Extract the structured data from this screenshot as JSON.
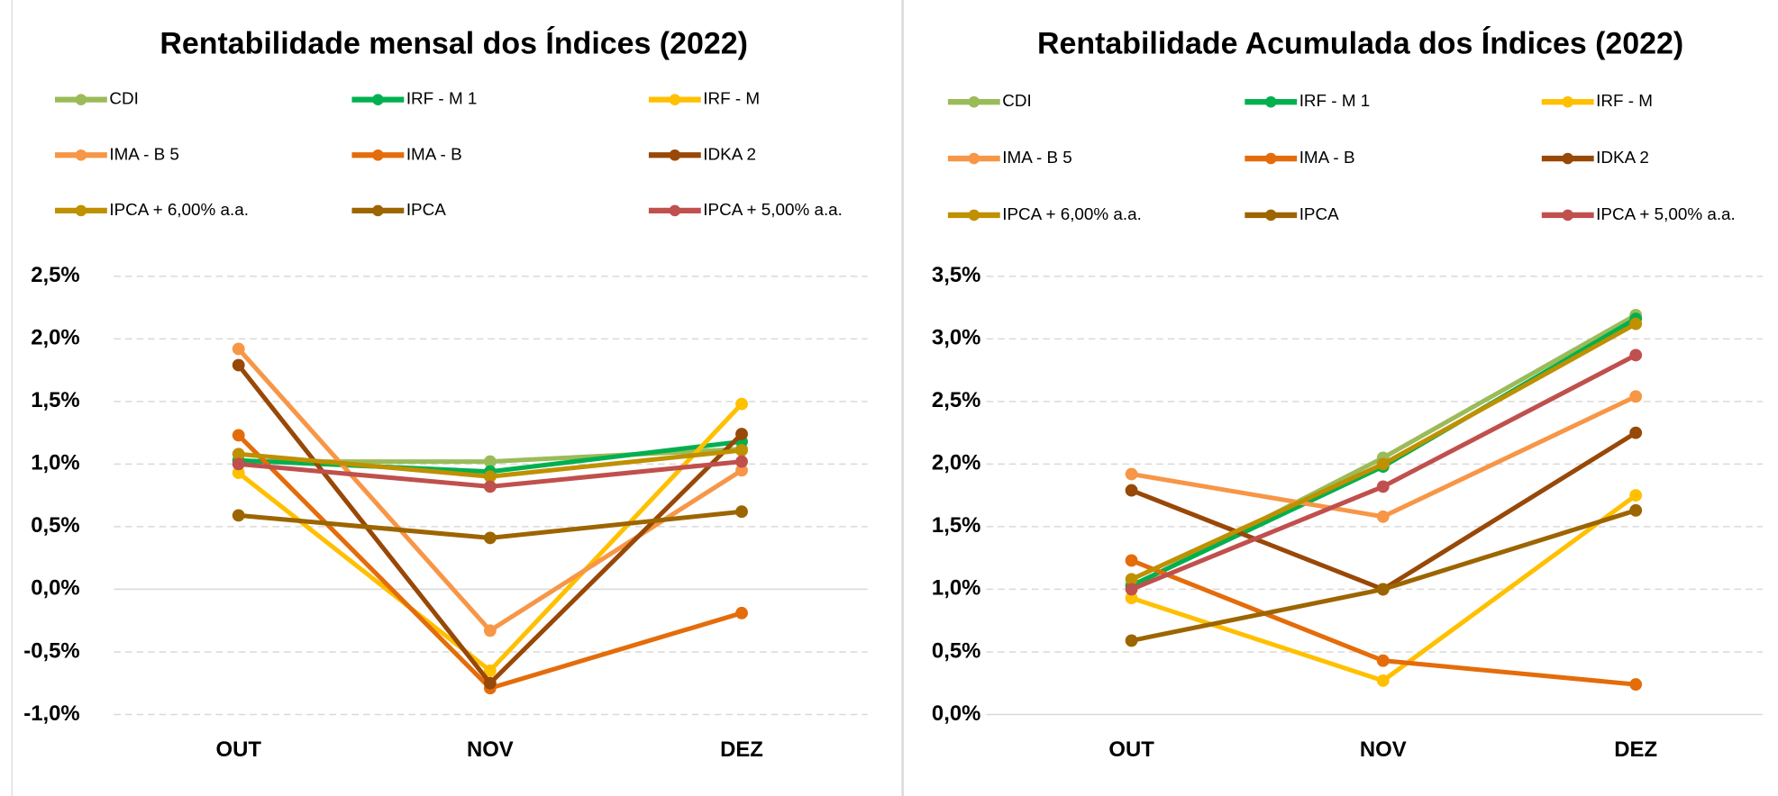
{
  "chart_data": [
    {
      "type": "line",
      "title": "Rentabilidade mensal dos Índices (2022)",
      "categories": [
        "OUT",
        "NOV",
        "DEZ"
      ],
      "ylim": [
        -1,
        2.5
      ],
      "yticks": [
        {
          "value": -1,
          "label": "-1,0%"
        },
        {
          "value": -0.5,
          "label": "-0,5%"
        },
        {
          "value": 0,
          "label": "0,0%"
        },
        {
          "value": 0.5,
          "label": "0,5%"
        },
        {
          "value": 1,
          "label": "1,0%"
        },
        {
          "value": 1.5,
          "label": "1,5%"
        },
        {
          "value": 2,
          "label": "2,0%"
        },
        {
          "value": 2.5,
          "label": "2,5%"
        }
      ],
      "grid": true,
      "series": [
        {
          "name": "CDI",
          "color": "#9bbb59",
          "values": [
            1.02,
            1.02,
            1.12
          ]
        },
        {
          "name": "IRF - M 1",
          "color": "#00b050",
          "values": [
            1.03,
            0.94,
            1.18
          ]
        },
        {
          "name": "IRF - M",
          "color": "#ffc000",
          "values": [
            0.93,
            -0.65,
            1.48
          ]
        },
        {
          "name": "IMA - B 5",
          "color": "#f79646",
          "values": [
            1.92,
            -0.33,
            0.95
          ]
        },
        {
          "name": "IMA - B",
          "color": "#e46c0a",
          "values": [
            1.23,
            -0.79,
            -0.19
          ]
        },
        {
          "name": "IDKA 2",
          "color": "#984807",
          "values": [
            1.79,
            -0.75,
            1.24
          ]
        },
        {
          "name": "IPCA + 6,00% a.a.",
          "color": "#bf9000",
          "values": [
            1.08,
            0.9,
            1.11
          ]
        },
        {
          "name": "IPCA",
          "color": "#9c6500",
          "values": [
            0.59,
            0.41,
            0.62
          ]
        },
        {
          "name": "IPCA + 5,00% a.a.",
          "color": "#c0504d",
          "values": [
            1.0,
            0.82,
            1.02
          ]
        }
      ]
    },
    {
      "type": "line",
      "title": "Rentabilidade Acumulada dos Índices (2022)",
      "categories": [
        "OUT",
        "NOV",
        "DEZ"
      ],
      "ylim": [
        0,
        3.5
      ],
      "yticks": [
        {
          "value": 0,
          "label": "0,0%"
        },
        {
          "value": 0.5,
          "label": "0,5%"
        },
        {
          "value": 1,
          "label": "1,0%"
        },
        {
          "value": 1.5,
          "label": "1,5%"
        },
        {
          "value": 2,
          "label": "2,0%"
        },
        {
          "value": 2.5,
          "label": "2,5%"
        },
        {
          "value": 3,
          "label": "3,0%"
        },
        {
          "value": 3.5,
          "label": "3,5%"
        }
      ],
      "grid": true,
      "series": [
        {
          "name": "CDI",
          "color": "#9bbb59",
          "values": [
            1.02,
            2.05,
            3.19
          ]
        },
        {
          "name": "IRF - M 1",
          "color": "#00b050",
          "values": [
            1.03,
            1.98,
            3.16
          ]
        },
        {
          "name": "IRF - M",
          "color": "#ffc000",
          "values": [
            0.93,
            0.27,
            1.75
          ]
        },
        {
          "name": "IMA - B 5",
          "color": "#f79646",
          "values": [
            1.92,
            1.58,
            2.54
          ]
        },
        {
          "name": "IMA - B",
          "color": "#e46c0a",
          "values": [
            1.23,
            0.43,
            0.24
          ]
        },
        {
          "name": "IDKA 2",
          "color": "#984807",
          "values": [
            1.79,
            1.0,
            2.25
          ]
        },
        {
          "name": "IPCA + 6,00% a.a.",
          "color": "#bf9000",
          "values": [
            1.08,
            2.0,
            3.12
          ]
        },
        {
          "name": "IPCA",
          "color": "#9c6500",
          "values": [
            0.59,
            1.0,
            1.63
          ]
        },
        {
          "name": "IPCA + 5,00% a.a.",
          "color": "#c0504d",
          "values": [
            1.0,
            1.82,
            2.87
          ]
        }
      ]
    }
  ]
}
